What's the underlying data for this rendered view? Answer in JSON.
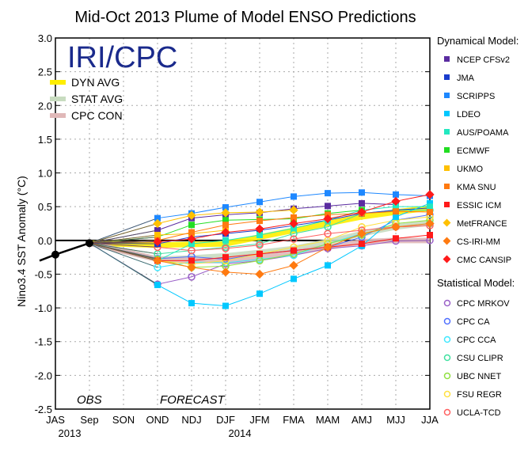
{
  "chart_data": {
    "type": "line",
    "title": "Mid-Oct 2013 Plume of Model ENSO Predictions",
    "ylabel": "Nino3.4 SST Anomaly (°C)",
    "ylim": [
      -2.5,
      3.0
    ],
    "yticks": [
      "3.0",
      "2.5",
      "2.0",
      "1.5",
      "1.0",
      "0.5",
      "0.0",
      "-0.5",
      "-1.0",
      "-1.5",
      "-2.0",
      "-2.5"
    ],
    "categories": [
      "JAS",
      "Sep",
      "SON",
      "OND",
      "NDJ",
      "DJF",
      "JFM",
      "FMA",
      "MAM",
      "AMJ",
      "MJJ",
      "JJA"
    ],
    "year_labels": [
      {
        "label": "2013",
        "at": "JAS"
      },
      {
        "label": "2014",
        "at": "DJF"
      }
    ],
    "annotations": {
      "obs": "OBS",
      "forecast": "FORECAST",
      "logo": "IRI/CPC"
    },
    "grid": true,
    "observed": {
      "name": "OBS",
      "values": [
        -0.21,
        -0.04
      ]
    },
    "averages": [
      {
        "name": "DYN AVG",
        "color": "#ffee00",
        "values": [
          -0.07,
          -0.06,
          -0.05,
          0.05,
          0.15,
          0.25,
          0.35,
          0.42,
          0.48
        ]
      },
      {
        "name": "STAT AVG",
        "color": "#c8dcc0",
        "values": [
          -0.28,
          -0.26,
          -0.23,
          -0.18,
          -0.12,
          -0.02,
          0.1,
          0.2,
          0.26
        ]
      },
      {
        "name": "CPC CON",
        "color": "#e0b8b8",
        "values": [
          -0.28,
          -0.3,
          -0.3,
          -0.25,
          -0.18,
          -0.1,
          -0.02,
          0.0,
          0.0
        ]
      }
    ],
    "dynamical_header": "Dynamical Model:",
    "statistical_header": "Statistical Model:",
    "dynamical": [
      {
        "name": "NCEP CFSv2",
        "color": "#5a2ca0",
        "marker": "square",
        "values": [
          0.15,
          0.33,
          0.38,
          0.41,
          0.47,
          0.51,
          0.55,
          0.53,
          null
        ]
      },
      {
        "name": "JMA",
        "color": "#1a3ccc",
        "marker": "square",
        "values": [
          -0.05,
          0.05,
          0.1,
          0.15,
          0.22,
          0.3,
          0.4,
          0.45,
          0.48
        ]
      },
      {
        "name": "SCRIPPS",
        "color": "#1e88ff",
        "marker": "square",
        "values": [
          0.33,
          0.4,
          0.49,
          0.57,
          0.65,
          0.7,
          0.71,
          0.68,
          0.66
        ]
      },
      {
        "name": "LDEO",
        "color": "#00c8ff",
        "marker": "square",
        "values": [
          -0.66,
          -0.93,
          -0.97,
          -0.79,
          -0.57,
          -0.37,
          -0.08,
          0.35,
          0.55
        ]
      },
      {
        "name": "AUS/POAMA",
        "color": "#22e8c0",
        "marker": "square",
        "values": [
          -0.3,
          -0.05,
          0.0,
          0.08,
          0.18,
          0.3,
          0.45,
          0.5,
          0.5
        ]
      },
      {
        "name": "ECMWF",
        "color": "#22dd22",
        "marker": "square",
        "values": [
          0.05,
          0.23,
          0.3,
          0.31,
          0.32,
          0.4,
          0.45,
          null,
          null
        ]
      },
      {
        "name": "UKMO",
        "color": "#ffc000",
        "marker": "square",
        "values": [
          0.08,
          0.1,
          0.15,
          null,
          null,
          null,
          null,
          null,
          null
        ]
      },
      {
        "name": "KMA SNU",
        "color": "#ff7a10",
        "marker": "square",
        "values": [
          0.0,
          0.12,
          0.23,
          0.29,
          0.34,
          0.38,
          0.4,
          0.43,
          0.42
        ]
      },
      {
        "name": "ESSIC ICM",
        "color": "#ff1a1a",
        "marker": "square",
        "values": [
          -0.3,
          -0.3,
          -0.25,
          -0.2,
          -0.15,
          -0.1,
          -0.05,
          0.03,
          0.08
        ]
      },
      {
        "name": "MetFRANCE",
        "color": "#ffc000",
        "marker": "diamond",
        "values": [
          0.25,
          0.37,
          0.41,
          0.42,
          0.45,
          null,
          null,
          null,
          null
        ]
      },
      {
        "name": "CS-IRI-MM",
        "color": "#ff7a10",
        "marker": "diamond",
        "values": [
          -0.3,
          -0.4,
          -0.47,
          -0.5,
          -0.37,
          -0.1,
          0.1,
          0.2,
          0.25
        ]
      },
      {
        "name": "CMC CANSIP",
        "color": "#ff1a1a",
        "marker": "diamond",
        "values": [
          -0.02,
          0.02,
          0.12,
          0.17,
          0.25,
          0.32,
          0.42,
          0.58,
          0.68
        ]
      }
    ],
    "statistical": [
      {
        "name": "CPC MRKOV",
        "color": "#9a60c8",
        "values": [
          -0.65,
          -0.54,
          -0.35,
          -0.3,
          -0.22,
          -0.12,
          -0.08,
          -0.01,
          0.0
        ]
      },
      {
        "name": "CPC CA",
        "color": "#5070ff",
        "values": [
          -0.27,
          -0.24,
          -0.28,
          -0.2,
          -0.15,
          -0.1,
          0.05,
          0.3,
          0.38
        ]
      },
      {
        "name": "CPC CCA",
        "color": "#40e8ff",
        "values": [
          -0.4,
          -0.32,
          -0.33,
          -0.28,
          -0.22,
          -0.05,
          0.1,
          0.2,
          0.25
        ]
      },
      {
        "name": "CSU CLIPR",
        "color": "#40e0a0",
        "values": [
          -0.2,
          -0.15,
          -0.1,
          -0.05,
          0.1,
          0.2,
          0.4,
          0.45,
          0.45
        ]
      },
      {
        "name": "UBC NNET",
        "color": "#90e040",
        "values": [
          -0.28,
          -0.4,
          -0.38,
          -0.3,
          -0.2,
          -0.05,
          0.08,
          0.25,
          0.3
        ]
      },
      {
        "name": "FSU REGR",
        "color": "#ffe040",
        "values": [
          -0.3,
          -0.35,
          -0.3,
          -0.2,
          -0.1,
          0.0,
          0.2,
          0.3,
          0.35
        ]
      },
      {
        "name": "UCLA-TCD",
        "color": "#ff6060",
        "values": [
          -0.1,
          -0.15,
          -0.12,
          -0.07,
          0.02,
          0.1,
          0.15,
          0.2,
          0.22
        ]
      }
    ]
  }
}
